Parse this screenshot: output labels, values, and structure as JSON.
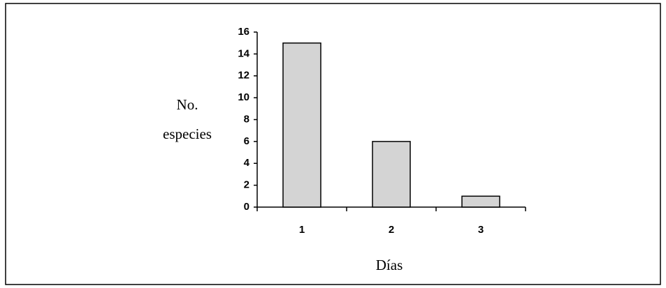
{
  "chart_data": {
    "type": "bar",
    "categories": [
      "1",
      "2",
      "3"
    ],
    "values": [
      15,
      6,
      1
    ],
    "color": "#d4d4d4",
    "ylabel": [
      "No.",
      "especies"
    ],
    "xlabel": "Días",
    "ylim": [
      0,
      16
    ],
    "yticks": [
      0,
      2,
      4,
      6,
      8,
      10,
      12,
      14,
      16
    ]
  }
}
